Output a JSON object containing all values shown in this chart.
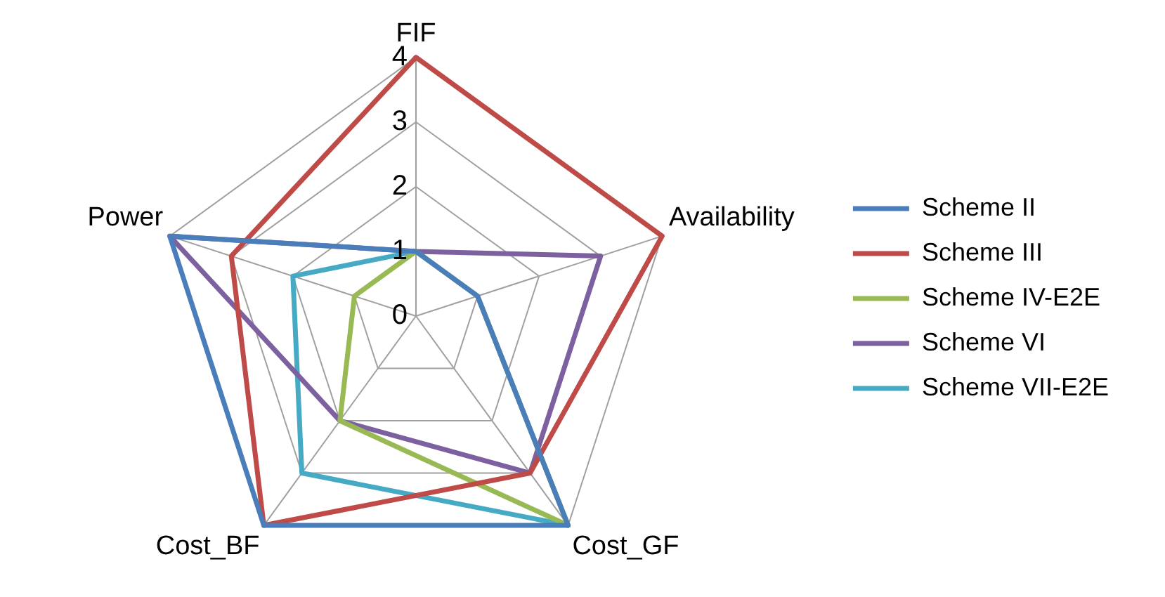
{
  "chart_data": {
    "type": "radar",
    "categories": [
      "FIF",
      "Availability",
      "Cost_GF",
      "Cost_BF",
      "Power"
    ],
    "series": [
      {
        "name": "Scheme II",
        "color": "#4a7ebb",
        "values": [
          1,
          1,
          4,
          4,
          4
        ]
      },
      {
        "name": "Scheme III",
        "color": "#be4b48",
        "values": [
          4,
          4,
          3,
          4,
          3
        ]
      },
      {
        "name": "Scheme IV-E2E",
        "color": "#98b954",
        "values": [
          1,
          1,
          4,
          2,
          1
        ]
      },
      {
        "name": "Scheme VI",
        "color": "#7d60a0",
        "values": [
          1,
          3,
          3,
          2,
          4
        ]
      },
      {
        "name": "Scheme VII-E2E",
        "color": "#46aac5",
        "values": [
          1,
          1,
          4,
          3,
          2
        ]
      }
    ],
    "ylim": [
      0,
      4
    ],
    "yticks": [
      0,
      1,
      2,
      3,
      4
    ],
    "legend": "right",
    "marker": "none",
    "grid": true
  }
}
